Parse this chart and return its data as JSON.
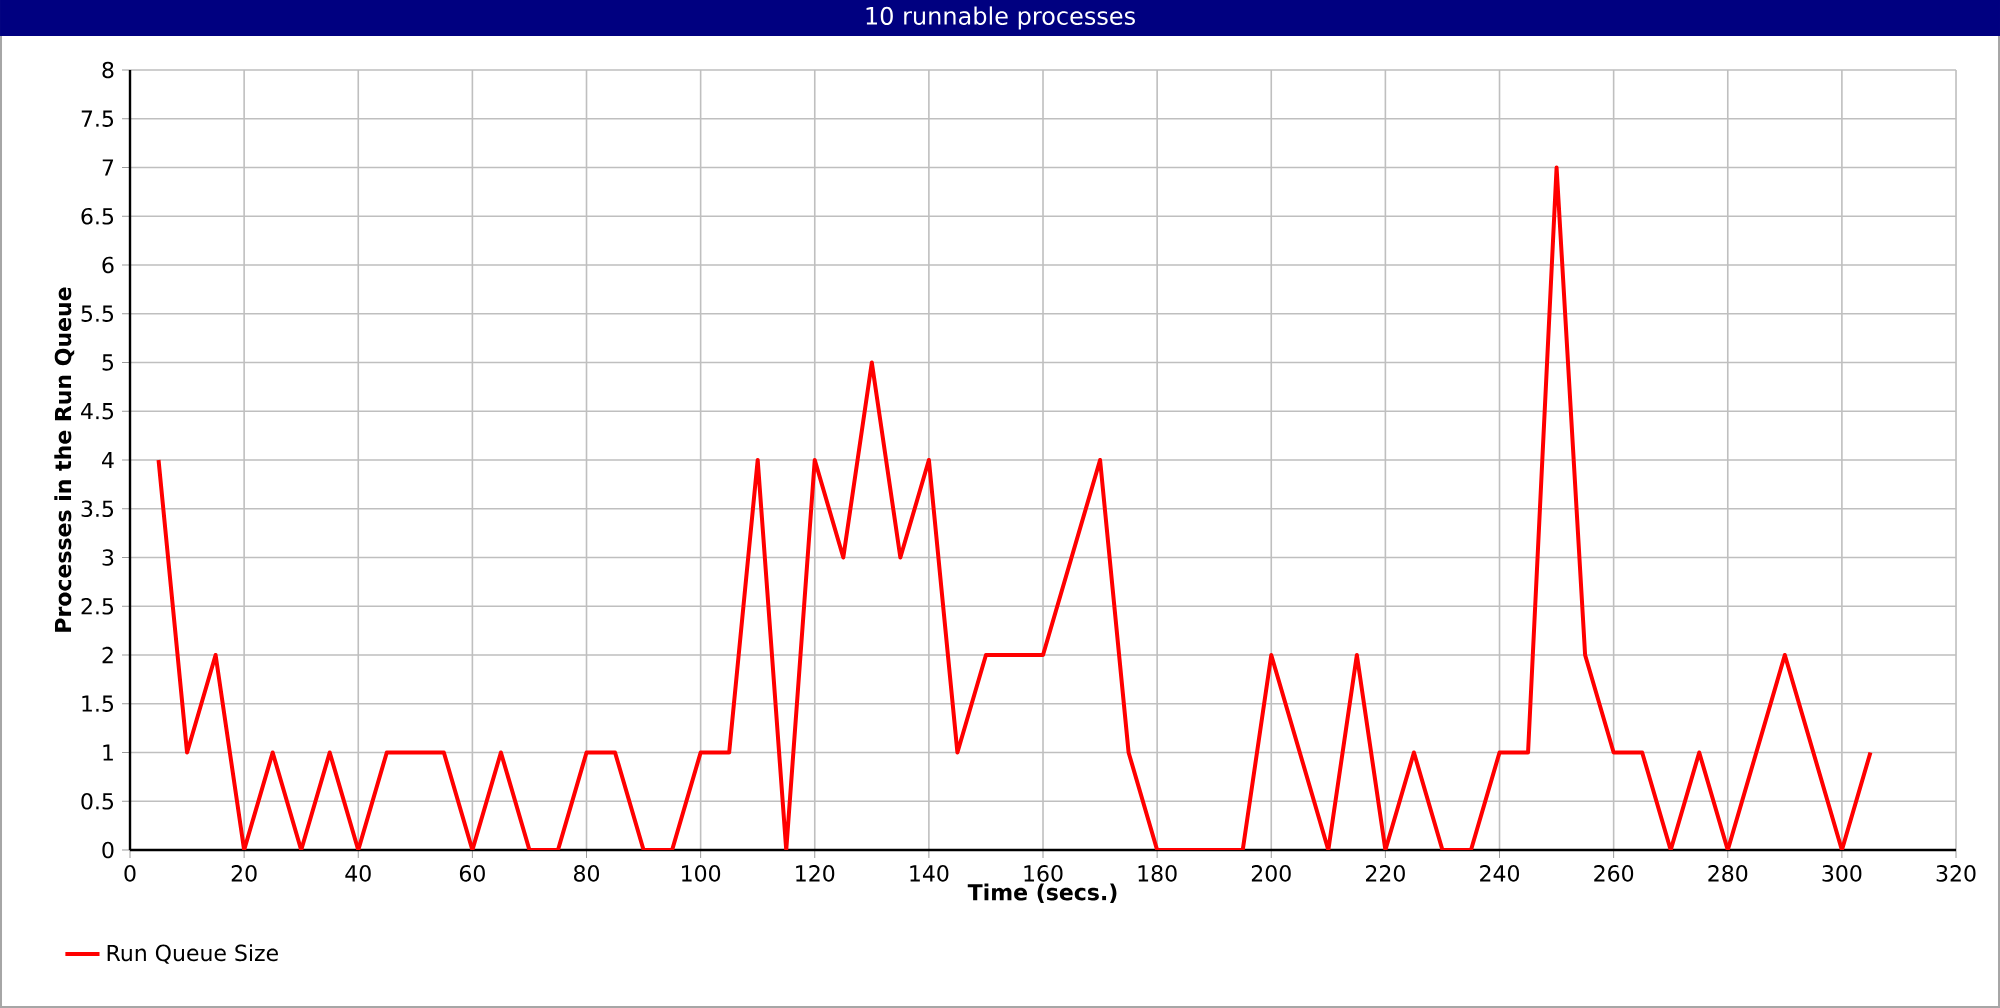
{
  "chart_data": {
    "type": "line",
    "title": "10 runnable processes",
    "xlabel": "Time (secs.)",
    "ylabel": "Processes in the Run Queue",
    "xlim": [
      0,
      320
    ],
    "xticks": [
      0,
      20,
      40,
      60,
      80,
      100,
      120,
      140,
      160,
      180,
      200,
      220,
      240,
      260,
      280,
      300,
      320
    ],
    "ylim": [
      0,
      8
    ],
    "yticks": [
      0,
      0.5,
      1,
      1.5,
      2,
      2.5,
      3,
      3.5,
      4,
      4.5,
      5,
      5.5,
      6,
      6.5,
      7,
      7.5,
      8
    ],
    "grid": true,
    "legend": "bottom left",
    "marker": "none",
    "line_style": "solid",
    "series": [
      {
        "name": "Run Queue Size",
        "color": "#ff0000",
        "x": [
          5,
          10,
          15,
          20,
          25,
          30,
          35,
          40,
          45,
          55,
          60,
          65,
          70,
          75,
          80,
          85,
          90,
          95,
          100,
          105,
          110,
          115,
          120,
          125,
          130,
          135,
          140,
          145,
          150,
          160,
          170,
          175,
          180,
          195,
          200,
          210,
          215,
          220,
          225,
          230,
          235,
          240,
          245,
          250,
          255,
          260,
          265,
          270,
          275,
          280,
          290,
          300,
          305
        ],
        "values": [
          4,
          1,
          2,
          0,
          1,
          0,
          1,
          0,
          1,
          1,
          0,
          1,
          0,
          0,
          1,
          1,
          0,
          0,
          1,
          1,
          4,
          0,
          4,
          3,
          5,
          3,
          4,
          1,
          2,
          2,
          4,
          1,
          0,
          0,
          2,
          0,
          2,
          0,
          1,
          0,
          0,
          1,
          1,
          7,
          2,
          1,
          1,
          0,
          1,
          0,
          2,
          0,
          1
        ]
      }
    ]
  }
}
